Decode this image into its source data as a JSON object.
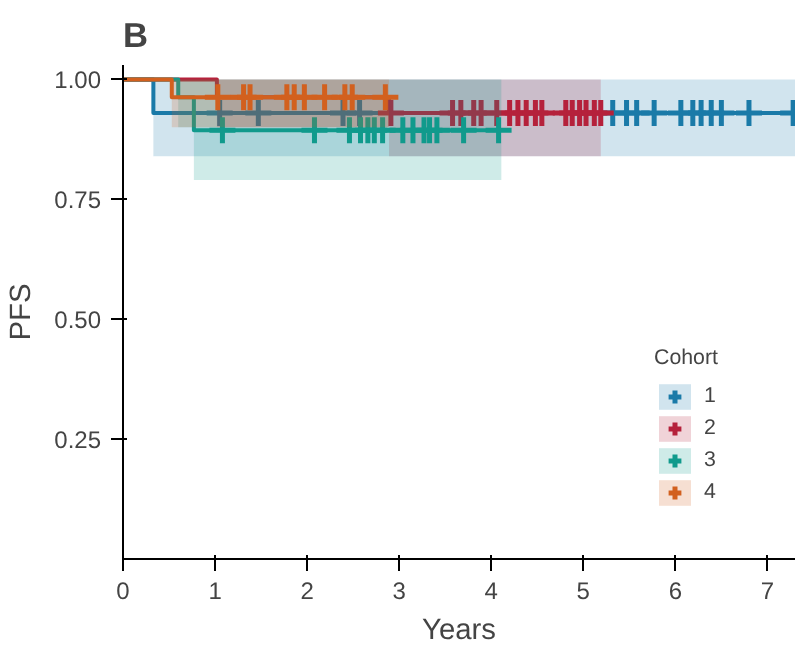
{
  "chart_data": {
    "type": "step",
    "title": "B",
    "xlabel": "Years",
    "ylabel": "PFS",
    "legend_title": "Cohort",
    "legend": "bottom right",
    "grid": false,
    "xlim": [
      0,
      7.3
    ],
    "ylim": [
      0,
      1.03
    ],
    "xticks": [
      0,
      1,
      2,
      3,
      4,
      5,
      6,
      7
    ],
    "yticks": [
      {
        "value": 0.25,
        "label": "0.25"
      },
      {
        "value": 0.5,
        "label": "0.50"
      },
      {
        "value": 0.75,
        "label": "0.75"
      },
      {
        "value": 1.0,
        "label": "1.00"
      }
    ],
    "series": [
      {
        "name": "1",
        "color": "#1a7aa8",
        "x": [
          0,
          0.33,
          7.3
        ],
        "values": [
          1,
          0.93,
          0.93
        ],
        "lower": [
          1,
          0.84,
          0.84
        ],
        "upper": [
          1,
          1,
          1
        ]
      },
      {
        "color": "#1a7aa8",
        "type": "scatter",
        "marker": "cross",
        "x": [
          1.05,
          1.47,
          2.39,
          2.57,
          5.32,
          5.47,
          5.58,
          5.77,
          6.06,
          6.19,
          6.28,
          6.39,
          6.5,
          6.8,
          7.28
        ],
        "values": [
          0.93,
          0.93,
          0.93,
          0.93,
          0.93,
          0.93,
          0.93,
          0.93,
          0.93,
          0.93,
          0.93,
          0.93,
          0.93,
          0.93,
          0.93
        ]
      },
      {
        "name": "2",
        "color": "#b5213b",
        "x": [
          0,
          1.02,
          2.89,
          5.19
        ],
        "values": [
          1,
          0.963,
          0.93,
          0.93
        ],
        "lower": [
          1,
          0.9,
          0.84,
          0.84
        ],
        "upper": [
          1,
          1,
          1,
          1
        ]
      },
      {
        "color": "#b5213b",
        "type": "scatter",
        "marker": "cross",
        "x": [
          2.91,
          3.58,
          3.67,
          3.81,
          3.89,
          4.06,
          4.2,
          4.29,
          4.38,
          4.48,
          4.55,
          4.81,
          4.88,
          4.96,
          5.03,
          5.12,
          5.19
        ],
        "values": [
          0.93,
          0.93,
          0.93,
          0.93,
          0.93,
          0.93,
          0.93,
          0.93,
          0.93,
          0.93,
          0.93,
          0.93,
          0.93,
          0.93,
          0.93,
          0.93,
          0.93
        ]
      },
      {
        "name": "3",
        "color": "#109a8c",
        "x": [
          0,
          0.6,
          0.77,
          4.11
        ],
        "values": [
          1,
          0.963,
          0.894,
          0.894
        ],
        "lower": [
          1,
          0.9,
          0.79,
          0.79
        ],
        "upper": [
          1,
          1,
          1,
          1
        ]
      },
      {
        "color": "#109a8c",
        "type": "scatter",
        "marker": "cross",
        "x": [
          1.08,
          2.08,
          2.46,
          2.58,
          2.66,
          2.73,
          2.82,
          3.04,
          3.15,
          3.27,
          3.33,
          3.41,
          3.7,
          4.08
        ],
        "values": [
          0.894,
          0.894,
          0.894,
          0.894,
          0.894,
          0.894,
          0.894,
          0.894,
          0.894,
          0.894,
          0.894,
          0.894,
          0.894,
          0.894
        ]
      },
      {
        "name": "4",
        "color": "#d2601e",
        "x": [
          0,
          0.53,
          2.89
        ],
        "values": [
          1,
          0.963,
          0.963
        ],
        "lower": [
          1,
          0.9,
          0.9
        ],
        "upper": [
          1,
          1,
          1
        ]
      },
      {
        "color": "#d2601e",
        "type": "scatter",
        "marker": "cross",
        "x": [
          1.03,
          1.31,
          1.38,
          1.78,
          1.86,
          1.97,
          2.19,
          2.41,
          2.49,
          2.85
        ],
        "values": [
          0.963,
          0.963,
          0.963,
          0.963,
          0.963,
          0.963,
          0.963,
          0.963,
          0.963,
          0.963
        ]
      }
    ]
  }
}
